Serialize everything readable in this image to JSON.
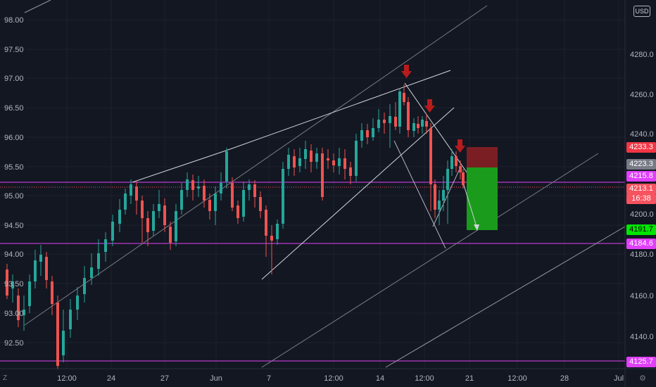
{
  "currency_label": "USD",
  "timezone_icon": "Z",
  "settings_icon": "gear-icon",
  "colors": {
    "bg": "#131722",
    "up": "#26a69a",
    "down": "#ef5350",
    "magenta": "#e040fb",
    "arrow": "#b71c1c",
    "white": "#d1d4dc"
  },
  "left_axis": [
    "98.00",
    "97.50",
    "97.00",
    "96.50",
    "96.00",
    "95.50",
    "95.00",
    "94.50",
    "94.00",
    "93.50",
    "93.00",
    "92.50"
  ],
  "right_axis": [
    "4280.0",
    "4260.0",
    "4240.0",
    "4200.0",
    "4180.0",
    "4160.0",
    "4140.0"
  ],
  "x_axis": [
    "12:00",
    "24",
    "27",
    "Jun",
    "7",
    "12:00",
    "14",
    "12:00",
    "21",
    "12:00",
    "28",
    "Jul"
  ],
  "price_tags": [
    {
      "text": "4233.3",
      "bg": "#f23645",
      "fg": "#ffffff"
    },
    {
      "text": "4223.3",
      "bg": "#787b86",
      "fg": "#ffffff"
    },
    {
      "text": "4215.8",
      "bg": "#e040fb",
      "fg": "#ffffff"
    },
    {
      "text": "4213.1",
      "bg": "#f7525f",
      "fg": "#ffffff"
    },
    {
      "text": "16:38",
      "bg": "#f7525f",
      "fg": "#ffffff"
    },
    {
      "text": "4191.7",
      "bg": "#00e600",
      "fg": "#000000"
    },
    {
      "text": "4184.6",
      "bg": "#e040fb",
      "fg": "#ffffff"
    },
    {
      "text": "4125.7",
      "bg": "#e040fb",
      "fg": "#ffffff"
    }
  ],
  "candles": [
    [
      10,
      383,
      420,
      375,
      425
    ],
    [
      18,
      410,
      400,
      390,
      430
    ],
    [
      26,
      420,
      455,
      410,
      465
    ],
    [
      34,
      448,
      440,
      420,
      470
    ],
    [
      42,
      435,
      400,
      390,
      445
    ],
    [
      50,
      400,
      370,
      355,
      410
    ],
    [
      58,
      372,
      362,
      348,
      392
    ],
    [
      66,
      365,
      398,
      358,
      410
    ],
    [
      74,
      400,
      432,
      392,
      448
    ],
    [
      82,
      430,
      520,
      420,
      525
    ],
    [
      90,
      505,
      470,
      440,
      515
    ],
    [
      100,
      468,
      440,
      425,
      480
    ],
    [
      110,
      440,
      420,
      408,
      455
    ],
    [
      120,
      418,
      395,
      378,
      430
    ],
    [
      130,
      395,
      380,
      360,
      405
    ],
    [
      140,
      382,
      360,
      340,
      392
    ],
    [
      150,
      358,
      340,
      330,
      372
    ],
    [
      160,
      342,
      315,
      305,
      350
    ],
    [
      170,
      318,
      298,
      283,
      330
    ],
    [
      178,
      298,
      275,
      268,
      305
    ],
    [
      186,
      278,
      262,
      255,
      290
    ],
    [
      194,
      265,
      285,
      258,
      305
    ],
    [
      202,
      285,
      310,
      278,
      345
    ],
    [
      210,
      310,
      330,
      300,
      350
    ],
    [
      218,
      328,
      300,
      290,
      335
    ],
    [
      226,
      300,
      290,
      270,
      310
    ],
    [
      234,
      292,
      320,
      282,
      330
    ],
    [
      242,
      322,
      345,
      315,
      355
    ],
    [
      250,
      343,
      300,
      290,
      350
    ],
    [
      258,
      298,
      270,
      260,
      305
    ],
    [
      266,
      270,
      255,
      245,
      280
    ],
    [
      274,
      256,
      270,
      248,
      285
    ],
    [
      282,
      268,
      265,
      250,
      280
    ],
    [
      290,
      264,
      285,
      255,
      295
    ],
    [
      298,
      284,
      300,
      275,
      312
    ],
    [
      306,
      300,
      275,
      265,
      320
    ],
    [
      314,
      275,
      260,
      245,
      285
    ],
    [
      322,
      258,
      215,
      210,
      268
    ],
    [
      330,
      260,
      295,
      252,
      300
    ],
    [
      338,
      292,
      310,
      285,
      318
    ],
    [
      346,
      308,
      270,
      258,
      315
    ],
    [
      354,
      270,
      262,
      255,
      285
    ],
    [
      362,
      262,
      280,
      256,
      295
    ],
    [
      370,
      280,
      300,
      272,
      310
    ],
    [
      378,
      298,
      335,
      292,
      365
    ],
    [
      386,
      335,
      342,
      320,
      390
    ],
    [
      394,
      340,
      318,
      312,
      348
    ],
    [
      402,
      318,
      240,
      230,
      325
    ],
    [
      410,
      240,
      220,
      210,
      250
    ],
    [
      418,
      222,
      238,
      212,
      250
    ],
    [
      426,
      236,
      225,
      210,
      245
    ],
    [
      434,
      226,
      212,
      200,
      240
    ],
    [
      442,
      214,
      230,
      205,
      245
    ],
    [
      450,
      230,
      218,
      210,
      240
    ],
    [
      458,
      218,
      280,
      210,
      285
    ],
    [
      466,
      225,
      228,
      212,
      240
    ],
    [
      474,
      228,
      235,
      218,
      245
    ],
    [
      482,
      236,
      225,
      210,
      248
    ],
    [
      490,
      225,
      240,
      212,
      255
    ],
    [
      498,
      238,
      250,
      230,
      262
    ],
    [
      506,
      250,
      200,
      190,
      258
    ],
    [
      514,
      200,
      185,
      175,
      210
    ],
    [
      522,
      185,
      195,
      176,
      205
    ],
    [
      530,
      195,
      182,
      168,
      200
    ],
    [
      538,
      182,
      170,
      155,
      188
    ],
    [
      546,
      170,
      175,
      160,
      190
    ],
    [
      554,
      175,
      165,
      148,
      210
    ],
    [
      562,
      166,
      180,
      145,
      185
    ],
    [
      568,
      180,
      130,
      125,
      190
    ],
    [
      574,
      132,
      145,
      120,
      150
    ],
    [
      580,
      145,
      185,
      138,
      195
    ],
    [
      588,
      186,
      175,
      168,
      195
    ],
    [
      594,
      176,
      182,
      165,
      190
    ],
    [
      600,
      180,
      170,
      165,
      190
    ],
    [
      606,
      172,
      180,
      162,
      190
    ],
    [
      612,
      182,
      262,
      175,
      300
    ],
    [
      618,
      262,
      298,
      255,
      310
    ],
    [
      624,
      298,
      285,
      270,
      320
    ],
    [
      630,
      285,
      270,
      250,
      300
    ],
    [
      636,
      270,
      240,
      228,
      318
    ],
    [
      642,
      240,
      222,
      212,
      250
    ],
    [
      648,
      222,
      236,
      215,
      245
    ],
    [
      654,
      236,
      245,
      228,
      255
    ],
    [
      658,
      245,
      263,
      240,
      268
    ]
  ]
}
